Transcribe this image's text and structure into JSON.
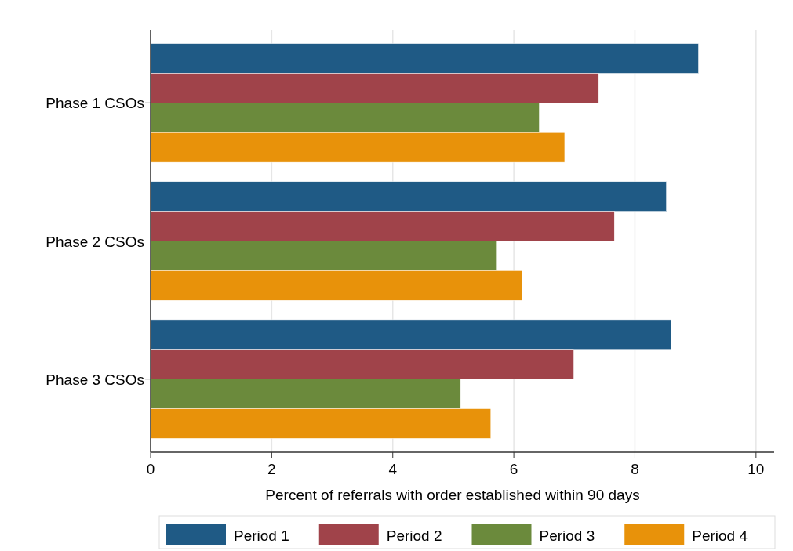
{
  "chart_data": {
    "type": "bar",
    "orientation": "horizontal",
    "xlabel": "Percent of referrals with order established within 90 days",
    "categories": [
      "Phase 1 CSOs",
      "Phase 2 CSOs",
      "Phase 3 CSOs"
    ],
    "series": [
      {
        "name": "Period 1",
        "color": "#1f5a85",
        "values": [
          9.05,
          8.52,
          8.6
        ]
      },
      {
        "name": "Period 2",
        "color": "#a0434a",
        "values": [
          7.4,
          7.66,
          6.99
        ]
      },
      {
        "name": "Period 3",
        "color": "#6b8a3c",
        "values": [
          6.42,
          5.71,
          5.12
        ]
      },
      {
        "name": "Period 4",
        "color": "#e8920a",
        "values": [
          6.84,
          6.14,
          5.62
        ]
      }
    ],
    "xlim": [
      0,
      10.3
    ],
    "xticks": [
      0,
      2,
      4,
      6,
      8,
      10
    ],
    "grid": "x",
    "legend": "bottom"
  }
}
